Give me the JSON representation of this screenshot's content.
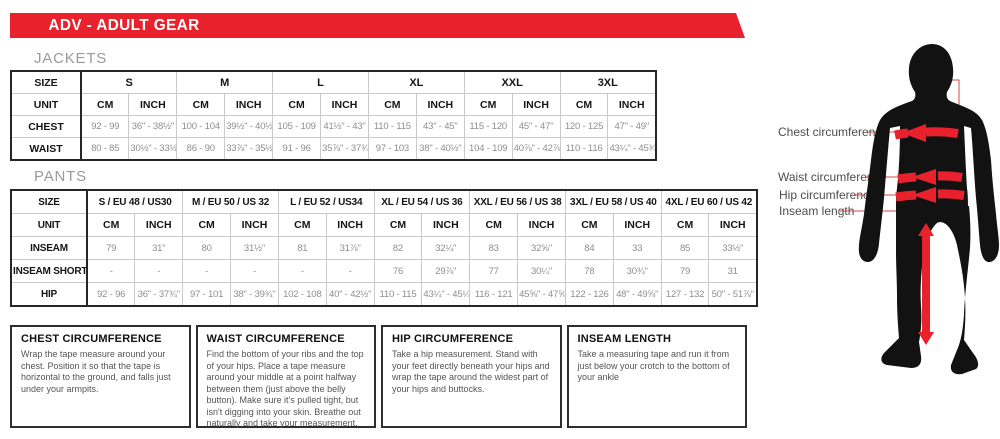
{
  "banner": {
    "title": "ADV - ADULT GEAR"
  },
  "colors": {
    "accent_red": "#e8212d",
    "leader_red": "#d24a45",
    "silhouette_black": "#121212"
  },
  "sections": {
    "jackets_label": "JACKETS",
    "pants_label": "PANTS"
  },
  "jackets": {
    "corner_label": "SIZE",
    "unit_label": "UNIT",
    "sizes": [
      "S",
      "M",
      "L",
      "XL",
      "XXL",
      "3XL"
    ],
    "units": [
      "CM",
      "INCH",
      "CM",
      "INCH",
      "CM",
      "INCH",
      "CM",
      "INCH",
      "CM",
      "INCH",
      "CM",
      "INCH"
    ],
    "rows": [
      {
        "label": "CHEST",
        "cells": [
          "92 - 99",
          "36\" - 38½\"",
          "100 - 104",
          "39½\" - 40½\"",
          "105 - 109",
          "41½\" - 43\"",
          "110 - 115",
          "43\" - 45\"",
          "115 - 120",
          "45\" - 47\"",
          "120 - 125",
          "47\" - 49\""
        ]
      },
      {
        "label": "WAIST",
        "cells": [
          "80 - 85",
          "30½\" - 33½\"",
          "86 - 90",
          "33⅞\" - 35½\"",
          "91 - 96",
          "35⅞\" - 37¾\"",
          "97 - 103",
          "38\" - 40½\"",
          "104 - 109",
          "40⅞\" - 42⅞\"",
          "110 - 116",
          "43¼\" - 45¾\""
        ]
      }
    ]
  },
  "pants": {
    "corner_label": "SIZE",
    "unit_label": "UNIT",
    "sizes": [
      "S / EU 48 / US30",
      "M / EU 50 / US 32",
      "L / EU 52 / US34",
      "XL / EU 54 / US 36",
      "XXL / EU 56 / US 38",
      "3XL / EU 58 / US 40",
      "4XL / EU 60 / US 42"
    ],
    "units": [
      "CM",
      "INCH",
      "CM",
      "INCH",
      "CM",
      "INCH",
      "CM",
      "INCH",
      "CM",
      "INCH",
      "CM",
      "INCH",
      "CM",
      "INCH"
    ],
    "rows": [
      {
        "label": "INSEAM",
        "cells": [
          "79",
          "31\"",
          "80",
          "31½\"",
          "81",
          "31⅞\"",
          "82",
          "32¼\"",
          "83",
          "32⅝\"",
          "84",
          "33",
          "85",
          "33½\""
        ]
      },
      {
        "label": "INSEAM SHORT",
        "cells": [
          "-",
          "-",
          "-",
          "-",
          "-",
          "-",
          "76",
          "29⅞\"",
          "77",
          "30¼\"",
          "78",
          "30¾\"",
          "79",
          "31"
        ]
      },
      {
        "label": "HIP",
        "cells": [
          "92 - 96",
          "36\" - 37¾\"",
          "97 - 101",
          "38\" - 39¾\"",
          "102 - 108",
          "40\" - 42½\"",
          "110 - 115",
          "43¼\" - 45¼\"",
          "116 - 121",
          "45⅝\" - 47⅝\"",
          "122 - 126",
          "48\" - 49⅝\"",
          "127 - 132",
          "50\" - 51⅞\""
        ]
      }
    ]
  },
  "instructions": [
    {
      "title": "CHEST CIRCUMFERENCE",
      "body": "Wrap the tape measure around your chest. Position it so that the tape is horizontal to the ground, and falls just under your armpits."
    },
    {
      "title": "WAIST CIRCUMFERENCE",
      "body": "Find the bottom of your ribs and the top of your hips. Place a tape measure around your middle at a point halfway between them (just above the belly button). Make sure it's pulled tight, but isn't digging into your skin. Breathe out naturally and take your measurement."
    },
    {
      "title": "HIP CIRCUMFERENCE",
      "body": "Take a hip measurement. Stand with your feet directly beneath your hips and wrap the tape around the widest part of your hips and buttocks."
    },
    {
      "title": "INSEAM LENGTH",
      "body": "Take a measuring tape and run it from just below your crotch to the bottom of your ankle"
    }
  ],
  "diagram": {
    "labels": [
      "Chest circumference",
      "Waist circumference",
      "Hip circumference",
      "Inseam length"
    ]
  }
}
